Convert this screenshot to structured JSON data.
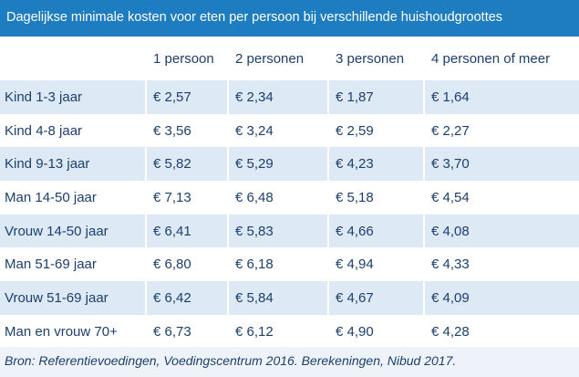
{
  "header": {
    "title": "Dagelijkse minimale kosten voor eten per persoon bij verschillende huishoudgroottes"
  },
  "table": {
    "columns": [
      "",
      "1 persoon",
      "2 personen",
      "3 personen",
      "4 personen of meer"
    ],
    "rows": [
      [
        "Kind 1-3 jaar",
        "€ 2,57",
        "€ 2,34",
        "€ 1,87",
        "€ 1,64"
      ],
      [
        "Kind 4-8 jaar",
        "€ 3,56",
        "€ 3,24",
        "€ 2,59",
        "€ 2,27"
      ],
      [
        "Kind 9-13 jaar",
        "€ 5,82",
        "€ 5,29",
        "€ 4,23",
        "€ 3,70"
      ],
      [
        "Man 14-50 jaar",
        "€ 7,13",
        "€ 6,48",
        "€ 5,18",
        "€ 4,54"
      ],
      [
        "Vrouw 14-50 jaar",
        "€ 6,41",
        "€ 5,83",
        "€ 4,66",
        "€ 4,08"
      ],
      [
        "Man 51-69 jaar",
        "€ 6,80",
        "€ 6,18",
        "€ 4,94",
        "€ 4,33"
      ],
      [
        "Vrouw 51-69 jaar",
        "€ 6,42",
        "€ 5,84",
        "€ 4,67",
        "€ 4,09"
      ],
      [
        "Man en vrouw 70+",
        "€ 6,73",
        "€ 6,12",
        "€ 4,90",
        "€ 4,28"
      ]
    ]
  },
  "footer": {
    "source": "Bron: Referentievoedingen, Voedingscentrum 2016. Berekeningen, Nibud 2017."
  }
}
